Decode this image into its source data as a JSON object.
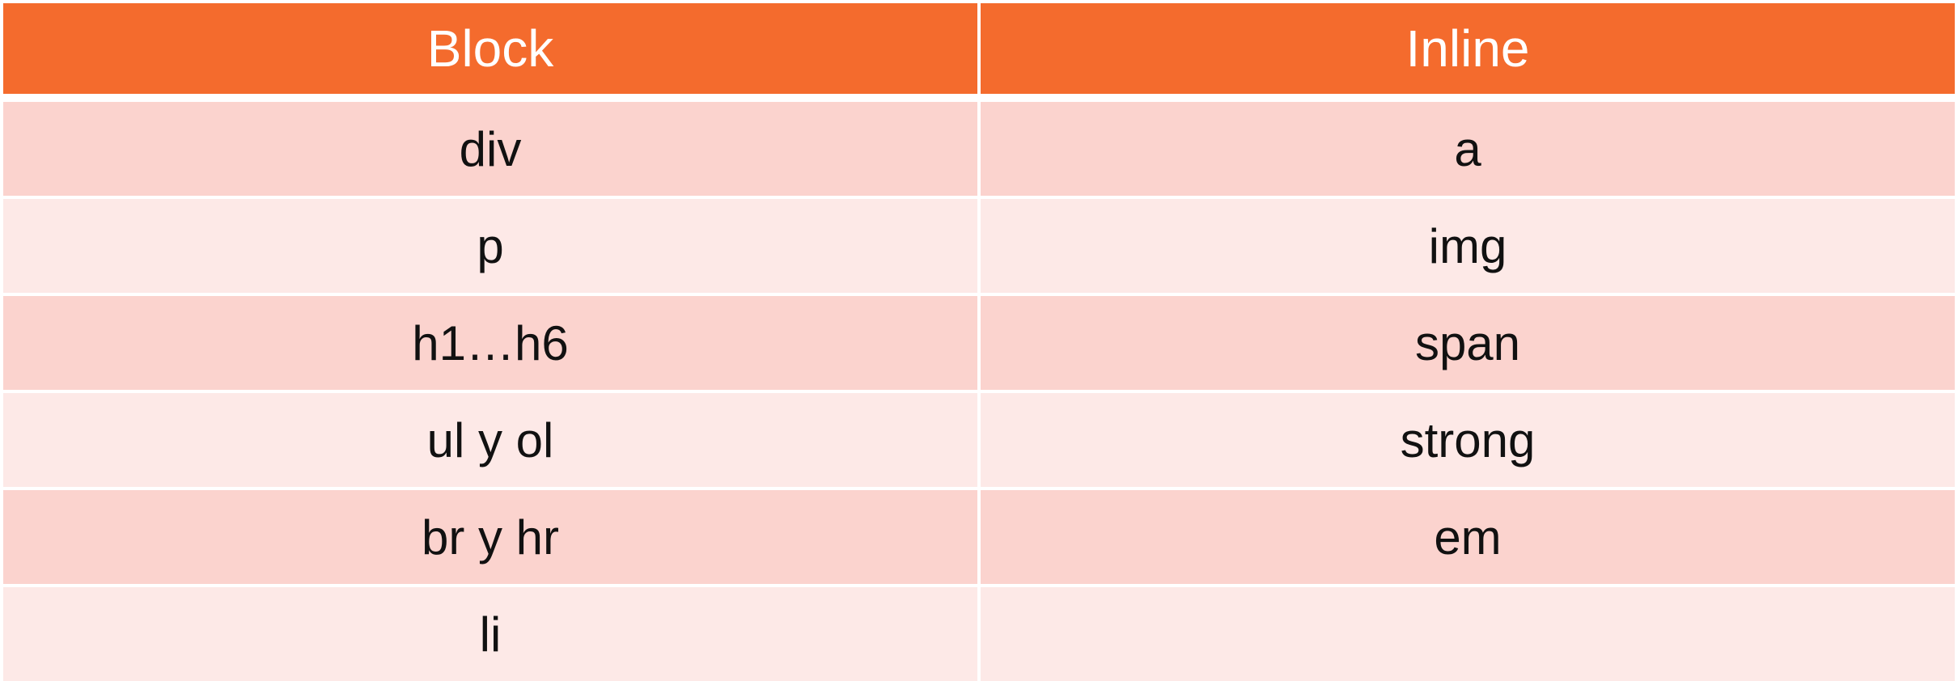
{
  "table": {
    "header_color": "#f46b2d",
    "row_color_odd": "#fbd3ce",
    "row_color_even": "#fde9e7",
    "columns": [
      "Block",
      "Inline"
    ],
    "rows": [
      [
        "div",
        "a"
      ],
      [
        "p",
        "img"
      ],
      [
        "h1…h6",
        "span"
      ],
      [
        "ul y ol",
        "strong"
      ],
      [
        "br y hr",
        "em"
      ],
      [
        "li",
        ""
      ]
    ]
  }
}
